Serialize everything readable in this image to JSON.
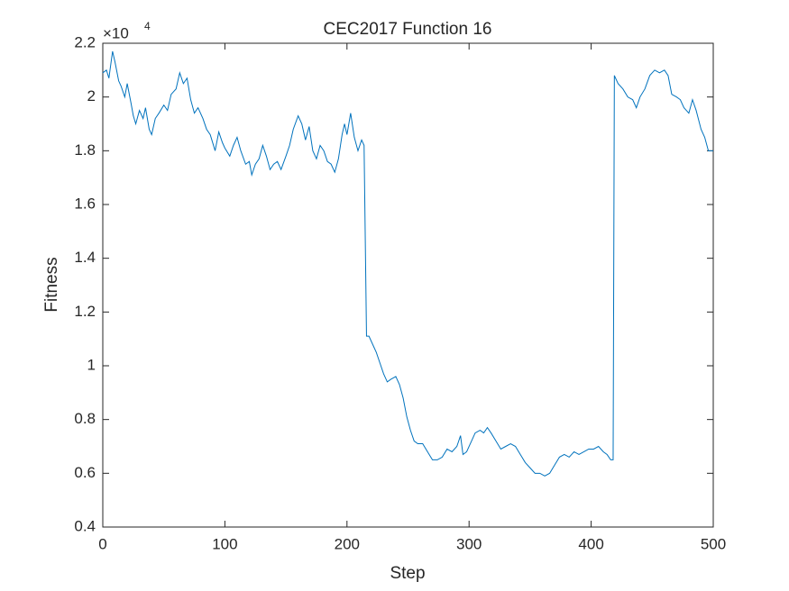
{
  "chart_data": {
    "type": "line",
    "title": "CEC2017 Function 16",
    "x_label": "Step",
    "y_label": "Fitness",
    "y_multiplier_base": "×10",
    "y_multiplier_exp": "4",
    "x": [
      0,
      3,
      5,
      8,
      10,
      13,
      15,
      18,
      20,
      23,
      25,
      27,
      30,
      33,
      35,
      38,
      40,
      43,
      46,
      50,
      53,
      56,
      60,
      63,
      66,
      69,
      72,
      75,
      78,
      82,
      85,
      88,
      92,
      95,
      98,
      100,
      104,
      107,
      110,
      113,
      117,
      120,
      122,
      125,
      128,
      131,
      134,
      137,
      140,
      143,
      146,
      150,
      153,
      156,
      160,
      163,
      166,
      169,
      172,
      175,
      178,
      181,
      184,
      187,
      190,
      193,
      196,
      198,
      200,
      203,
      206,
      209,
      212,
      214,
      216,
      218,
      221,
      224,
      227,
      230,
      233,
      236,
      240,
      243,
      246,
      249,
      252,
      255,
      258,
      262,
      266,
      270,
      274,
      278,
      282,
      286,
      290,
      293,
      295,
      298,
      302,
      305,
      309,
      312,
      315,
      318,
      322,
      326,
      330,
      334,
      338,
      342,
      346,
      350,
      354,
      358,
      362,
      366,
      370,
      374,
      378,
      382,
      386,
      390,
      394,
      398,
      402,
      406,
      410,
      413,
      416,
      418,
      419,
      422,
      426,
      430,
      434,
      437,
      440,
      444,
      448,
      452,
      456,
      460,
      463,
      466,
      470,
      473,
      476,
      480,
      483,
      486,
      490,
      493,
      496,
      500
    ],
    "series": [
      {
        "color": "#0072bd",
        "values": [
          2.09,
          2.1,
          2.07,
          2.17,
          2.13,
          2.06,
          2.04,
          2.0,
          2.05,
          1.98,
          1.93,
          1.9,
          1.95,
          1.92,
          1.96,
          1.88,
          1.86,
          1.92,
          1.94,
          1.97,
          1.95,
          2.01,
          2.03,
          2.09,
          2.05,
          2.07,
          1.99,
          1.94,
          1.96,
          1.92,
          1.88,
          1.86,
          1.8,
          1.87,
          1.83,
          1.81,
          1.78,
          1.82,
          1.85,
          1.8,
          1.75,
          1.76,
          1.71,
          1.75,
          1.77,
          1.82,
          1.78,
          1.73,
          1.75,
          1.76,
          1.73,
          1.78,
          1.82,
          1.88,
          1.93,
          1.9,
          1.84,
          1.89,
          1.8,
          1.77,
          1.82,
          1.8,
          1.76,
          1.75,
          1.72,
          1.77,
          1.86,
          1.9,
          1.86,
          1.94,
          1.85,
          1.8,
          1.84,
          1.82,
          1.11,
          1.11,
          1.08,
          1.05,
          1.01,
          0.97,
          0.94,
          0.95,
          0.96,
          0.93,
          0.88,
          0.81,
          0.76,
          0.72,
          0.71,
          0.71,
          0.68,
          0.65,
          0.65,
          0.66,
          0.69,
          0.68,
          0.7,
          0.74,
          0.67,
          0.68,
          0.72,
          0.75,
          0.76,
          0.75,
          0.77,
          0.75,
          0.72,
          0.69,
          0.7,
          0.71,
          0.7,
          0.67,
          0.64,
          0.62,
          0.6,
          0.6,
          0.59,
          0.6,
          0.63,
          0.66,
          0.67,
          0.66,
          0.68,
          0.67,
          0.68,
          0.69,
          0.69,
          0.7,
          0.68,
          0.67,
          0.65,
          0.65,
          2.08,
          2.05,
          2.03,
          2.0,
          1.99,
          1.96,
          2.0,
          2.03,
          2.08,
          2.1,
          2.09,
          2.1,
          2.08,
          2.01,
          2.0,
          1.99,
          1.96,
          1.94,
          1.99,
          1.95,
          1.88,
          1.85,
          1.8,
          1.8
        ]
      }
    ],
    "xlim": [
      0,
      500
    ],
    "xticks": [
      0,
      100,
      200,
      300,
      400,
      500
    ],
    "ylim": [
      0.4,
      2.2
    ],
    "yticks": [
      0.4,
      0.6,
      0.8,
      1,
      1.2,
      1.4,
      1.6,
      1.8,
      2,
      2.2
    ]
  }
}
